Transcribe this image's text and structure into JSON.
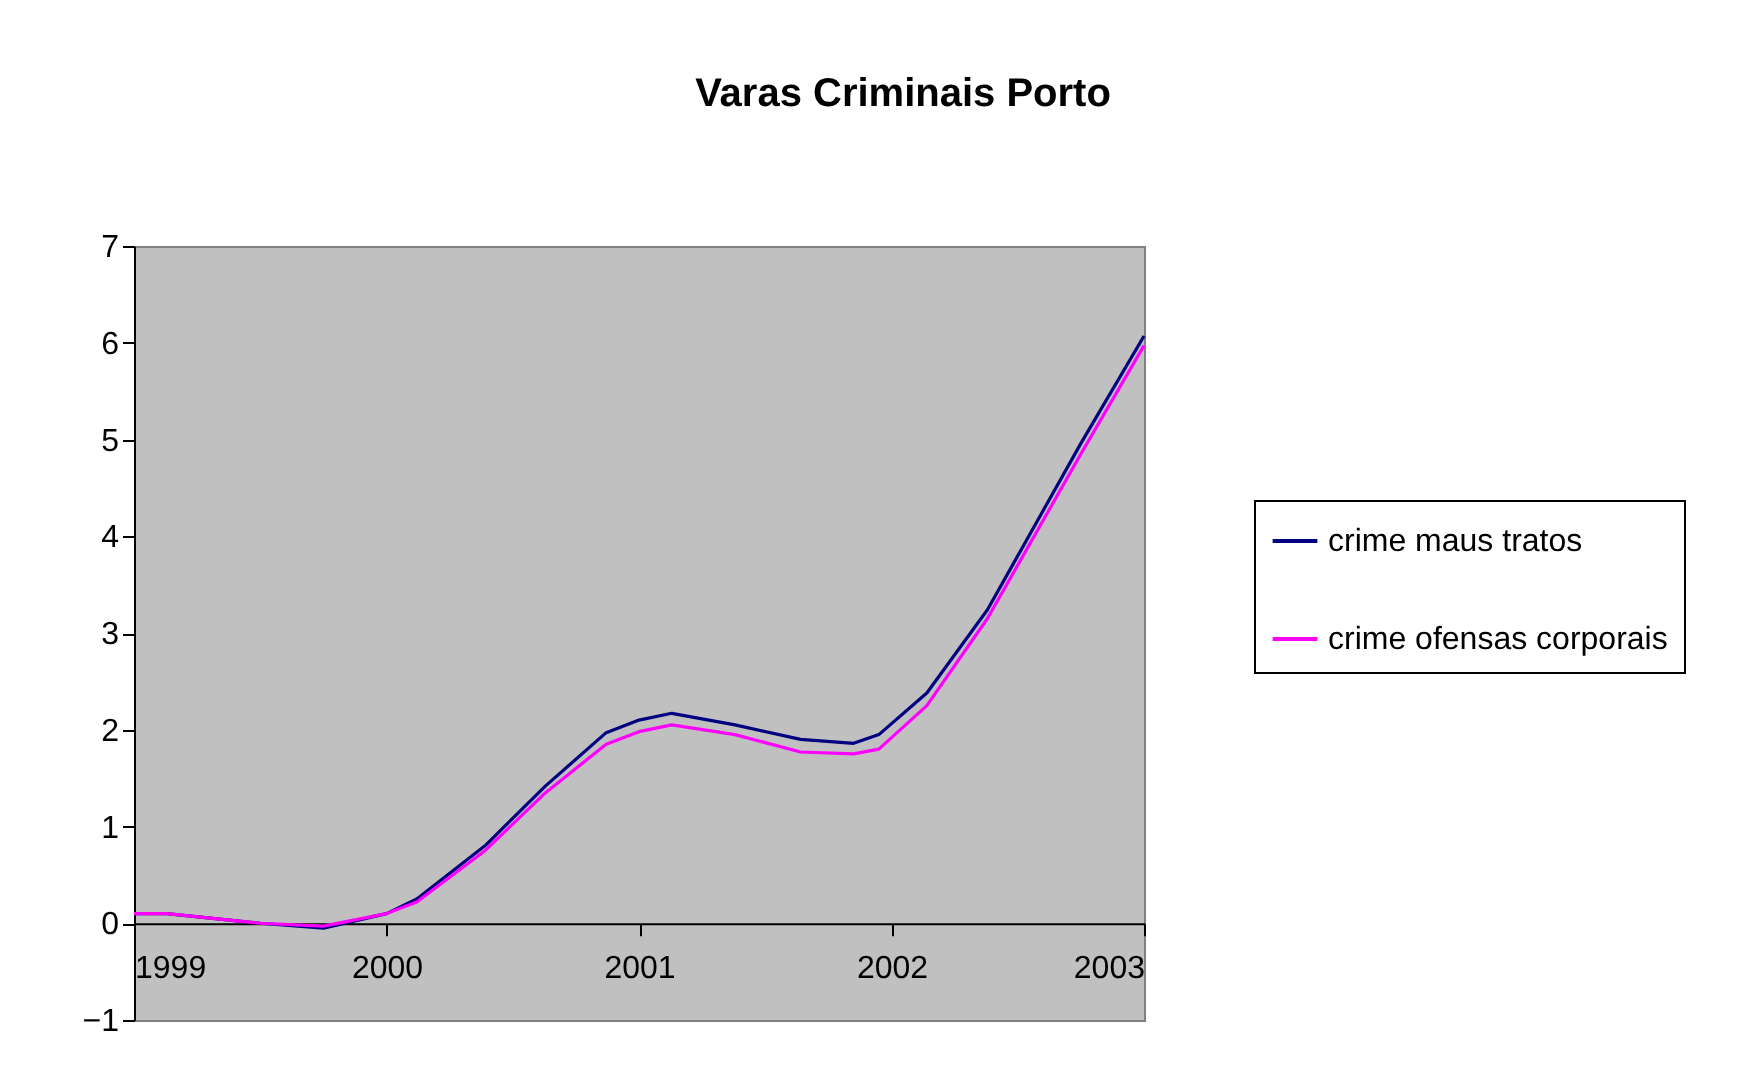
{
  "chart_data": {
    "type": "line",
    "title": "Varas Criminais Porto",
    "x": [
      1999,
      1999.13,
      1999.5,
      1999.75,
      2000.0,
      2000.12,
      2000.39,
      2000.63,
      2000.87,
      2001.0,
      2001.13,
      2001.38,
      2001.64,
      2001.85,
      2001.95,
      2002.14,
      2002.38,
      2002.75,
      2003.0
    ],
    "series": [
      {
        "name": "crime maus tratos",
        "color": "#000080",
        "values": [
          0.1,
          0.1,
          0.0,
          -0.05,
          0.1,
          0.25,
          0.8,
          1.42,
          1.97,
          2.1,
          2.17,
          2.05,
          1.9,
          1.86,
          1.95,
          2.38,
          3.24,
          4.96,
          6.07
        ]
      },
      {
        "name": "crime ofensas corporais",
        "color": "#ff00ff",
        "values": [
          0.1,
          0.1,
          0.0,
          -0.03,
          0.1,
          0.22,
          0.75,
          1.35,
          1.85,
          1.98,
          2.05,
          1.95,
          1.77,
          1.75,
          1.8,
          2.25,
          3.15,
          4.85,
          5.97
        ]
      }
    ],
    "xlim": [
      1999,
      2003
    ],
    "xticks": [
      1999,
      2000,
      2001,
      2002,
      2003
    ],
    "ylim": [
      -1,
      7
    ],
    "yticks": [
      -1,
      0,
      1,
      2,
      3,
      4,
      5,
      6,
      7
    ],
    "grid": false,
    "legend": "right",
    "line_style": "solid",
    "marker": "none"
  }
}
